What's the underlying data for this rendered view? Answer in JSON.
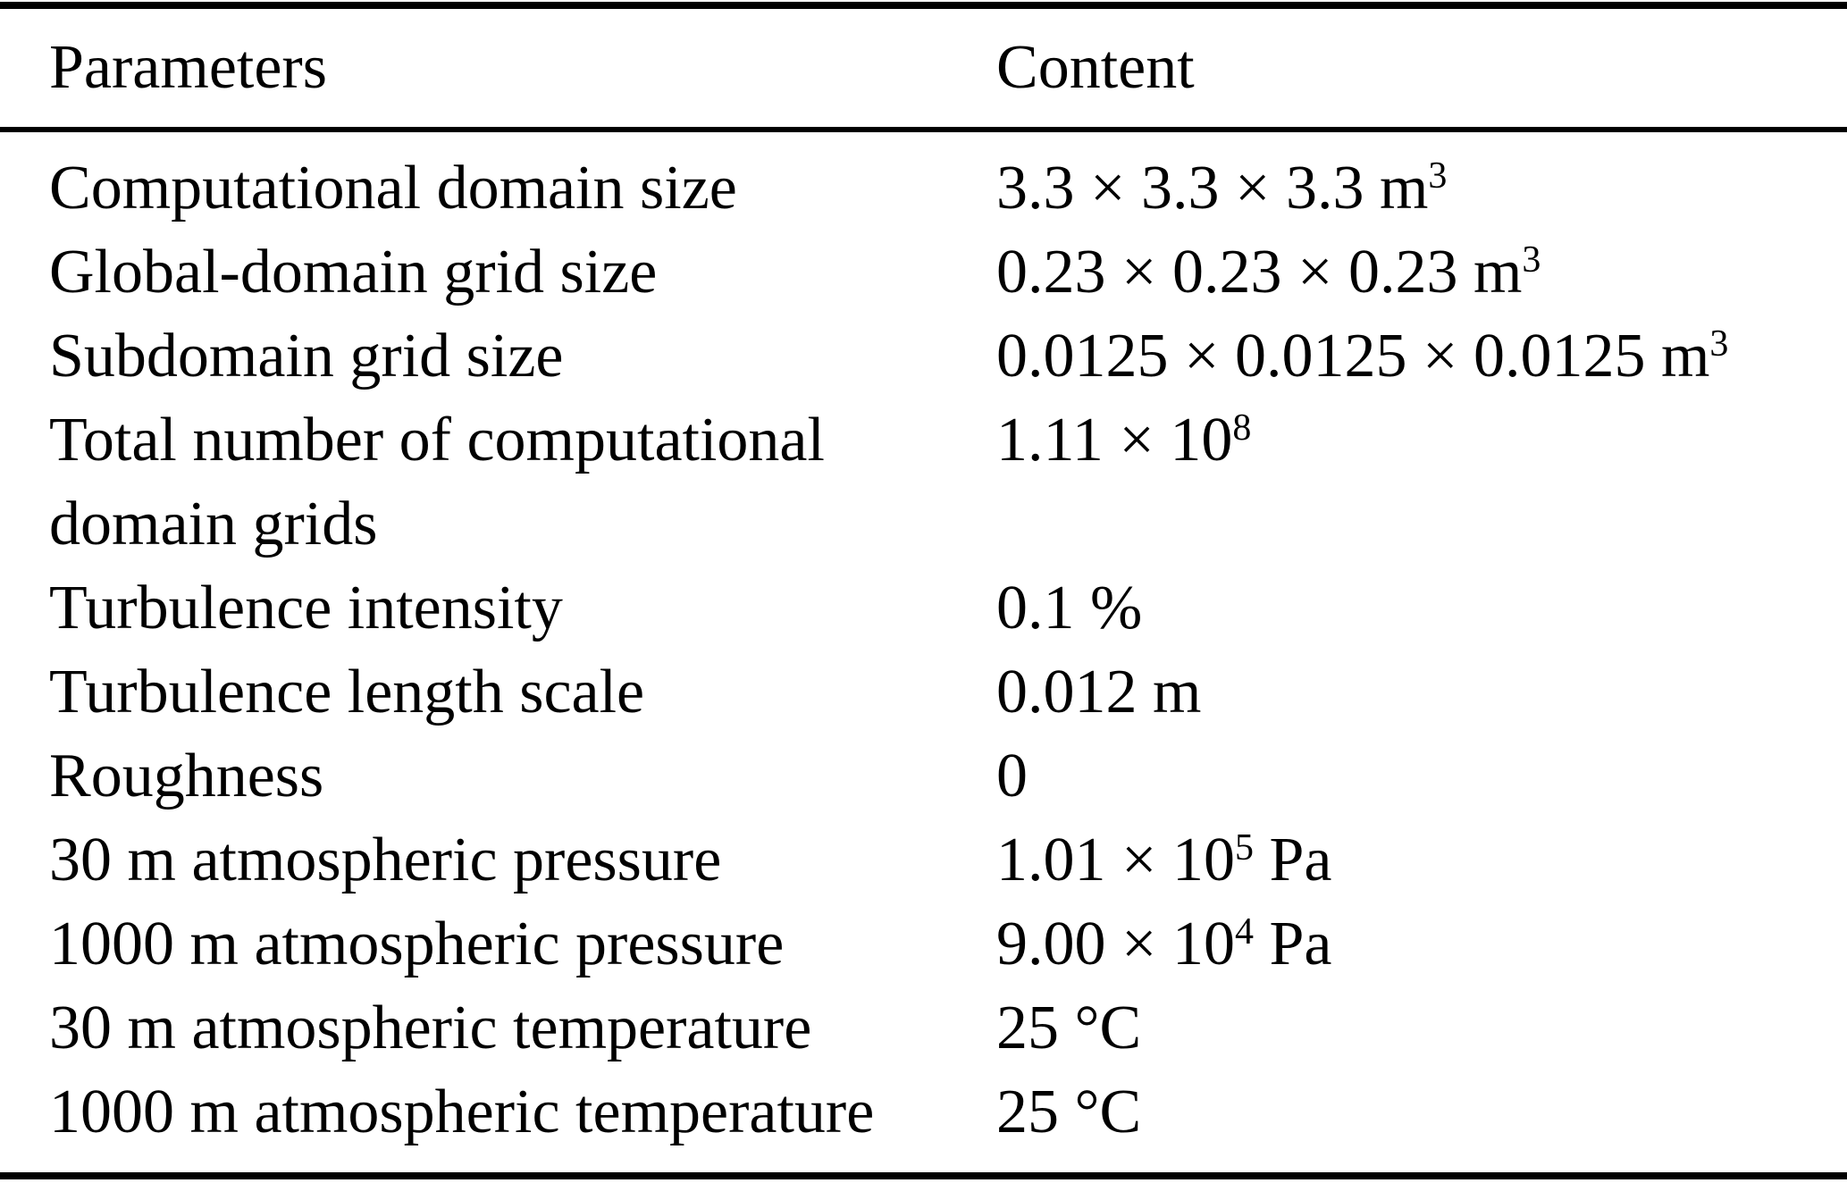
{
  "table": {
    "headers": {
      "param": "Parameters",
      "value": "Content"
    },
    "rows": [
      {
        "param": "Computational domain size",
        "value_main": "3.3 × 3.3 × 3.3 m",
        "value_sup": "3",
        "value_suffix": ""
      },
      {
        "param": "Global-domain grid size",
        "value_main": "0.23 × 0.23 × 0.23 m",
        "value_sup": "3",
        "value_suffix": ""
      },
      {
        "param": "Subdomain grid size",
        "value_main": "0.0125 × 0.0125 × 0.0125 m",
        "value_sup": "3",
        "value_suffix": ""
      },
      {
        "param": "Total number of computational domain grids",
        "value_main": "1.11 × 10",
        "value_sup": "8",
        "value_suffix": ""
      },
      {
        "param": "Turbulence intensity",
        "value_main": "0.1 %",
        "value_sup": "",
        "value_suffix": ""
      },
      {
        "param": "Turbulence length scale",
        "value_main": "0.012 m",
        "value_sup": "",
        "value_suffix": ""
      },
      {
        "param": "Roughness",
        "value_main": "0",
        "value_sup": "",
        "value_suffix": ""
      },
      {
        "param": "30 m atmospheric pressure",
        "value_main": "1.01 × 10",
        "value_sup": "5",
        "value_suffix": " Pa"
      },
      {
        "param": "1000 m atmospheric pressure",
        "value_main": "9.00 × 10",
        "value_sup": "4",
        "value_suffix": " Pa"
      },
      {
        "param": "30 m atmospheric temperature",
        "value_main": "25 °C",
        "value_sup": "",
        "value_suffix": ""
      },
      {
        "param": "1000 m atmospheric temperature",
        "value_main": "25 °C",
        "value_sup": "",
        "value_suffix": ""
      }
    ]
  }
}
